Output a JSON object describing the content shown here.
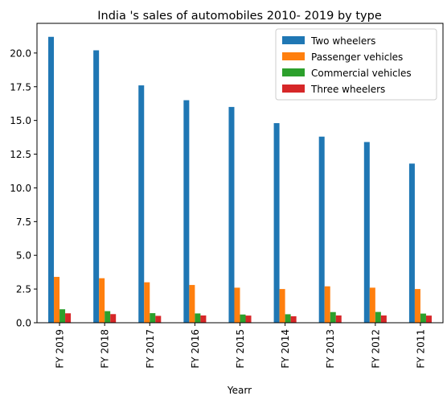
{
  "chart_data": {
    "type": "bar",
    "title": "India 's sales of automobiles 2010- 2019 by type",
    "xlabel": "Yearr",
    "ylabel": "",
    "ylim": [
      0,
      22.2
    ],
    "yticks": [
      "0.0",
      "2.5",
      "5.0",
      "7.5",
      "10.0",
      "12.5",
      "15.0",
      "17.5",
      "20.0"
    ],
    "categories": [
      "FY 2019",
      "FY 2018",
      "FY 2017",
      "FY 2016",
      "FY 2015",
      "FY 2014",
      "FY 2013",
      "FY 2012",
      "FY 2011"
    ],
    "series": [
      {
        "name": "Two wheelers",
        "color": "#1f77b4",
        "values": [
          21.2,
          20.2,
          17.6,
          16.5,
          16.0,
          14.8,
          13.8,
          13.4,
          11.8
        ]
      },
      {
        "name": "Passenger vehicles",
        "color": "#ff7f0e",
        "values": [
          3.4,
          3.3,
          3.0,
          2.8,
          2.6,
          2.5,
          2.7,
          2.6,
          2.5
        ]
      },
      {
        "name": "Commercial vehicles",
        "color": "#2ca02c",
        "values": [
          1.0,
          0.86,
          0.71,
          0.69,
          0.61,
          0.63,
          0.79,
          0.8,
          0.68
        ]
      },
      {
        "name": "Three wheelers",
        "color": "#d62728",
        "values": [
          0.7,
          0.64,
          0.51,
          0.54,
          0.53,
          0.48,
          0.54,
          0.54,
          0.53
        ]
      }
    ],
    "legend_position": "top-right",
    "grid": false
  }
}
